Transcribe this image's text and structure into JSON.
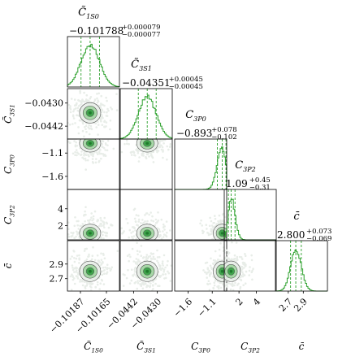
{
  "colors": {
    "hist": "#2ca02c",
    "contour_fill_light": "#e8ede8",
    "contour_fill_mid": "#a6d8a6",
    "contour_fill_dark": "#2e9a3c",
    "contour_line": "#5a5a5a"
  },
  "chart_data": {
    "type": "corner",
    "grid": false,
    "params": [
      {
        "key": "C1S0",
        "sym": "C̃",
        "sub": "1S0",
        "range": [
          -0.10198,
          -0.10154
        ],
        "ticks": [
          -0.10187,
          -0.10165
        ],
        "median": -0.101788,
        "upper_err": 7.9e-05,
        "lower_err": 7.7e-05,
        "title_value": "−0.101788",
        "title_upper": "+0.000079",
        "title_lower": "−0.000077"
      },
      {
        "key": "C3S1",
        "sym": "C̃",
        "sub": "3S1",
        "range": [
          -0.04487,
          -0.04225
        ],
        "ticks": [
          -0.0442,
          -0.043
        ],
        "median": -0.04351,
        "upper_err": 0.00045,
        "lower_err": 0.00045,
        "title_value": "−0.04351",
        "title_upper": "+0.00045",
        "title_lower": "−0.00045"
      },
      {
        "key": "C3P0",
        "sym": "C",
        "sub": "3P0",
        "range": [
          -1.88,
          -0.8
        ],
        "ticks": [
          -1.6,
          -1.1
        ],
        "median": -0.893,
        "upper_err": 0.078,
        "lower_err": 0.102,
        "title_value": "−0.893",
        "title_upper": "+0.078",
        "title_lower": "−0.102"
      },
      {
        "key": "C3P2",
        "sym": "C",
        "sub": "3P2",
        "range": [
          0.3,
          6.3
        ],
        "ticks": [
          2,
          4
        ],
        "median": 1.09,
        "upper_err": 0.45,
        "lower_err": 0.31,
        "title_value": "1.09",
        "title_upper": "+0.45",
        "title_lower": "−0.31"
      },
      {
        "key": "c",
        "sym": "c̄",
        "sub": "",
        "range": [
          2.53,
          3.22
        ],
        "ticks": [
          2.7,
          2.9
        ],
        "median": 2.8,
        "upper_err": 0.073,
        "lower_err": 0.069,
        "title_value": "2.800",
        "title_upper": "+0.073",
        "title_lower": "−0.069"
      }
    ],
    "y_ticks_extra": {
      "C3P2": [
        2,
        4
      ]
    },
    "tick_labels": {
      "x": [
        [
          "−0.10187",
          "−0.10165"
        ],
        [
          "−0.0442",
          "−0.0430"
        ],
        [
          "−1.6",
          "−1.1"
        ],
        [
          "2",
          "4"
        ],
        [
          "2.7",
          "2.9"
        ]
      ],
      "y": {
        "C3S1": [
          "−0.0430",
          "−0.0442"
        ],
        "C3P0": [
          "−1.1",
          "−1.6"
        ],
        "C3P2": [
          "4",
          "2"
        ],
        "c": [
          "2.9",
          "2.7"
        ]
      }
    }
  }
}
